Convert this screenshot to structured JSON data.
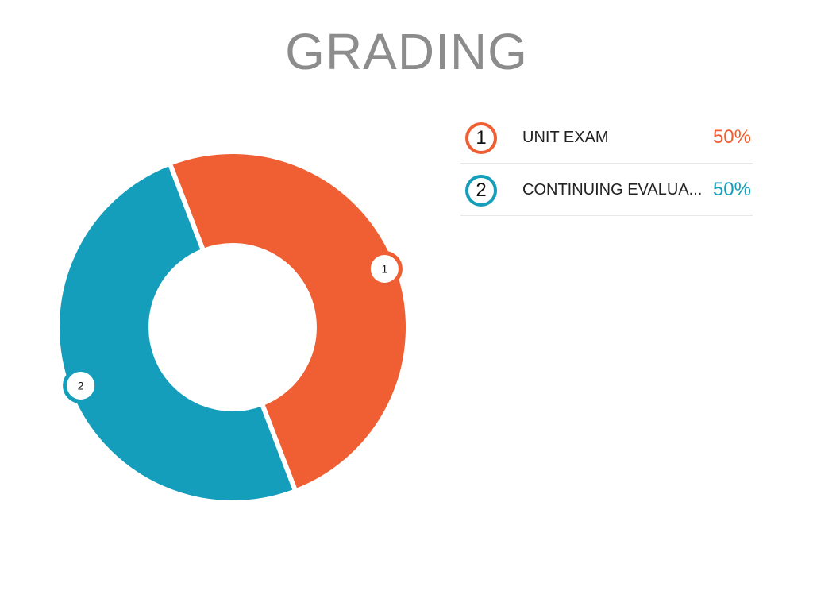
{
  "title": "GRADING",
  "chart_data": {
    "type": "pie",
    "donut": true,
    "slices": [
      {
        "marker": "1",
        "label": "UNIT EXAM",
        "value": 50,
        "value_label": "50%",
        "color": "#F05F33"
      },
      {
        "marker": "2",
        "label": "CONTINUING EVALUA...",
        "value": 50,
        "value_label": "50%",
        "color": "#149EBB"
      }
    ],
    "legend_placement": "right"
  }
}
